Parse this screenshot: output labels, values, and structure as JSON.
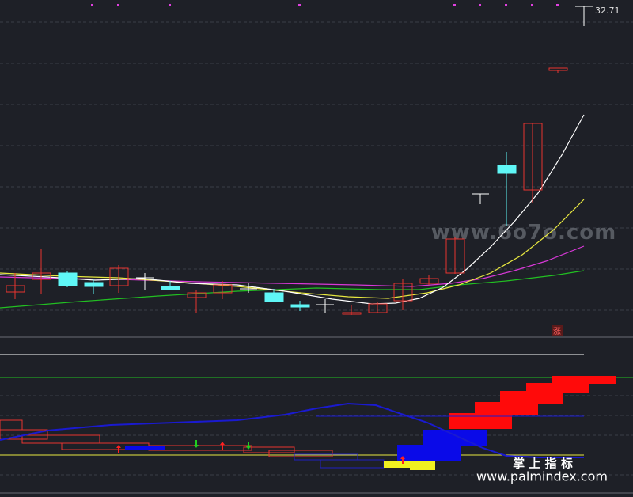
{
  "price_label": "32.71",
  "watermark": "www.6o7o.com",
  "badge": "涨",
  "brand": {
    "name": "掌 上 指 标",
    "url": "www.palmindex.com"
  }
}
